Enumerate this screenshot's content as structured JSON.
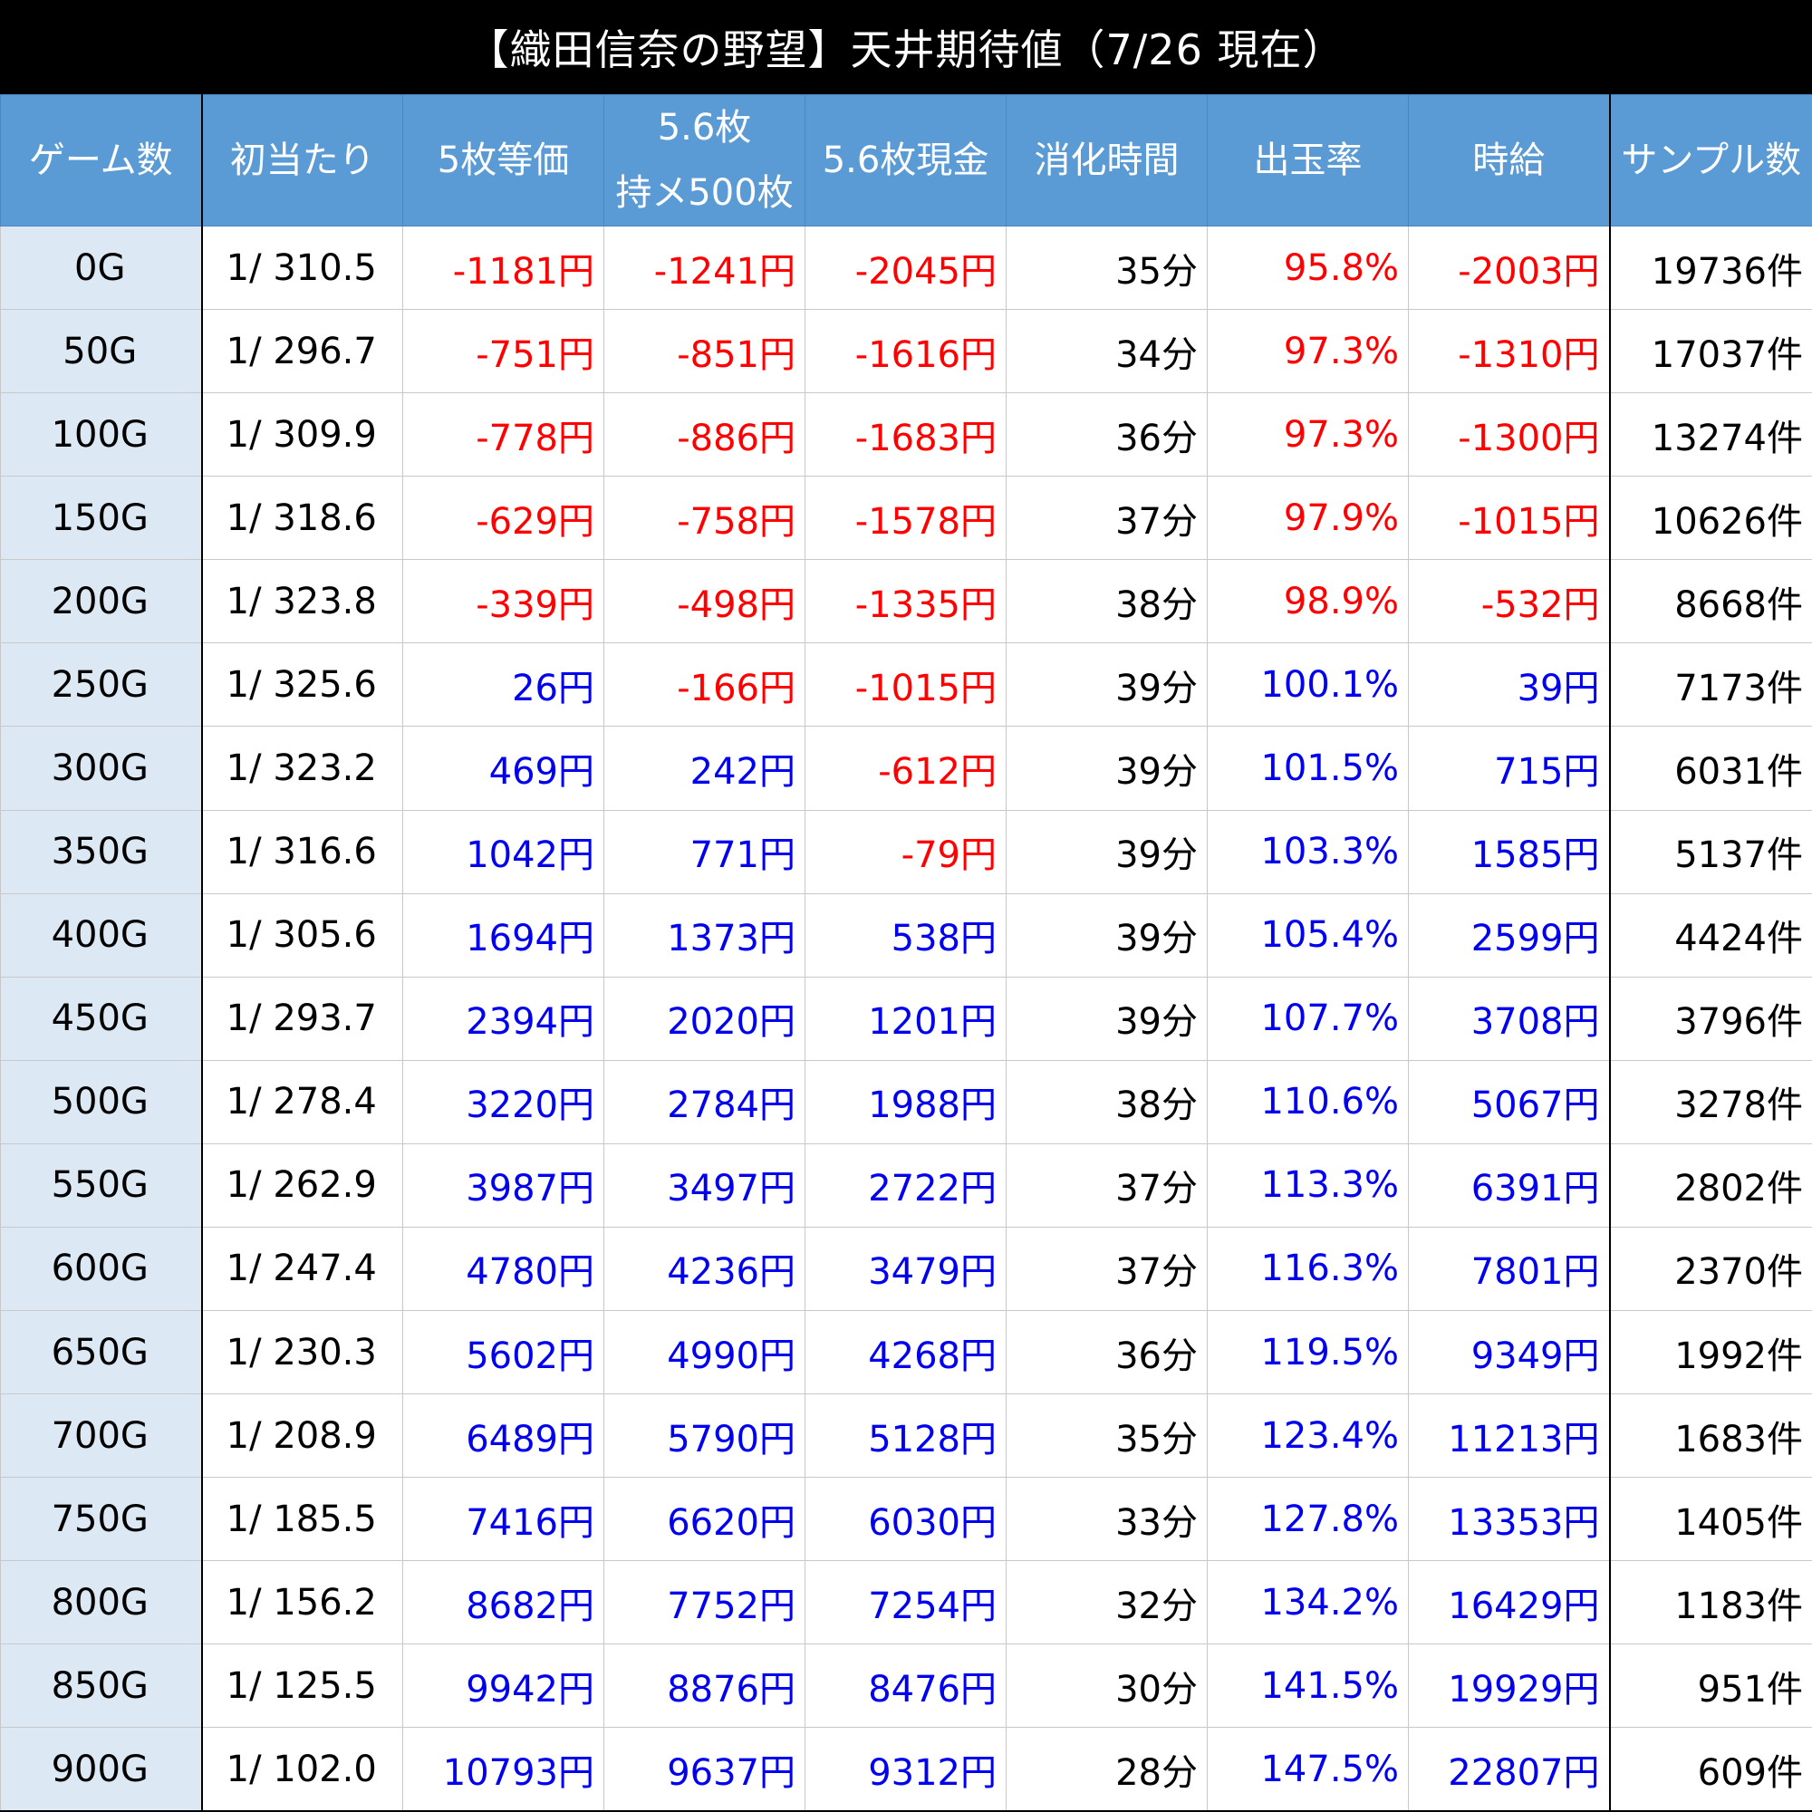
{
  "title": "【織田信奈の野望】天井期待値（7/26 現在）",
  "colors": {
    "negative": "#ff0000",
    "positive": "#0000ee",
    "header_bg": "#5b9bd5",
    "first_col_bg": "#dce9f5",
    "title_bg": "#000000"
  },
  "chart_data": {
    "type": "table",
    "title": "【織田信奈の野望】天井期待値（7/26 現在）",
    "columns": [
      "ゲーム数",
      "初当たり",
      "5枚等価",
      "5.6枚\n持メ500枚",
      "5.6枚現金",
      "消化時間",
      "出玉率",
      "時給",
      "サンプル数"
    ],
    "rows": [
      [
        "0G",
        "1/ 310.5",
        "-1181円",
        "-1241円",
        "-2045円",
        "35分",
        "95.8%",
        "-2003円",
        "19736件"
      ],
      [
        "50G",
        "1/ 296.7",
        "-751円",
        "-851円",
        "-1616円",
        "34分",
        "97.3%",
        "-1310円",
        "17037件"
      ],
      [
        "100G",
        "1/ 309.9",
        "-778円",
        "-886円",
        "-1683円",
        "36分",
        "97.3%",
        "-1300円",
        "13274件"
      ],
      [
        "150G",
        "1/ 318.6",
        "-629円",
        "-758円",
        "-1578円",
        "37分",
        "97.9%",
        "-1015円",
        "10626件"
      ],
      [
        "200G",
        "1/ 323.8",
        "-339円",
        "-498円",
        "-1335円",
        "38分",
        "98.9%",
        "-532円",
        "8668件"
      ],
      [
        "250G",
        "1/ 325.6",
        "26円",
        "-166円",
        "-1015円",
        "39分",
        "100.1%",
        "39円",
        "7173件"
      ],
      [
        "300G",
        "1/ 323.2",
        "469円",
        "242円",
        "-612円",
        "39分",
        "101.5%",
        "715円",
        "6031件"
      ],
      [
        "350G",
        "1/ 316.6",
        "1042円",
        "771円",
        "-79円",
        "39分",
        "103.3%",
        "1585円",
        "5137件"
      ],
      [
        "400G",
        "1/ 305.6",
        "1694円",
        "1373円",
        "538円",
        "39分",
        "105.4%",
        "2599円",
        "4424件"
      ],
      [
        "450G",
        "1/ 293.7",
        "2394円",
        "2020円",
        "1201円",
        "39分",
        "107.7%",
        "3708円",
        "3796件"
      ],
      [
        "500G",
        "1/ 278.4",
        "3220円",
        "2784円",
        "1988円",
        "38分",
        "110.6%",
        "5067円",
        "3278件"
      ],
      [
        "550G",
        "1/ 262.9",
        "3987円",
        "3497円",
        "2722円",
        "37分",
        "113.3%",
        "6391円",
        "2802件"
      ],
      [
        "600G",
        "1/ 247.4",
        "4780円",
        "4236円",
        "3479円",
        "37分",
        "116.3%",
        "7801円",
        "2370件"
      ],
      [
        "650G",
        "1/ 230.3",
        "5602円",
        "4990円",
        "4268円",
        "36分",
        "119.5%",
        "9349円",
        "1992件"
      ],
      [
        "700G",
        "1/ 208.9",
        "6489円",
        "5790円",
        "5128円",
        "35分",
        "123.4%",
        "11213円",
        "1683件"
      ],
      [
        "750G",
        "1/ 185.5",
        "7416円",
        "6620円",
        "6030円",
        "33分",
        "127.8%",
        "13353円",
        "1405件"
      ],
      [
        "800G",
        "1/ 156.2",
        "8682円",
        "7752円",
        "7254円",
        "32分",
        "134.2%",
        "16429円",
        "1183件"
      ],
      [
        "850G",
        "1/ 125.5",
        "9942円",
        "8876円",
        "8476円",
        "30分",
        "141.5%",
        "19929円",
        "951件"
      ],
      [
        "900G",
        "1/ 102.0",
        "10793円",
        "9637円",
        "9312円",
        "28分",
        "147.5%",
        "22807円",
        "609件"
      ]
    ]
  }
}
